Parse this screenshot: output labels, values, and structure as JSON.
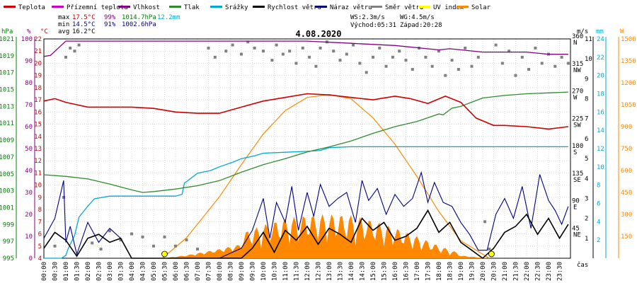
{
  "chart_data": {
    "type": "line",
    "title": "4.08.2020",
    "xlabel": "čas",
    "x_ticks": [
      "00:00",
      "00:30",
      "01:00",
      "01:30",
      "02:00",
      "02:30",
      "03:00",
      "03:30",
      "04:00",
      "04:30",
      "05:00",
      "05:30",
      "06:00",
      "06:30",
      "07:00",
      "07:30",
      "08:00",
      "08:30",
      "09:00",
      "09:30",
      "10:00",
      "10:30",
      "11:00",
      "11:30",
      "12:00",
      "12:30",
      "13:00",
      "13:30",
      "14:00",
      "14:30",
      "15:00",
      "15:30",
      "16:00",
      "16:30",
      "17:00",
      "17:30",
      "18:00",
      "18:30",
      "19:00",
      "19:30",
      "20:00",
      "20:30",
      "21:00",
      "21:30",
      "22:00",
      "22:30",
      "23:00",
      "23:30"
    ],
    "axes": {
      "hPa": {
        "unit": "hPa",
        "color": "#008000",
        "range": [
          995,
          1021
        ],
        "ticks": [
          995,
          997,
          999,
          1001,
          1003,
          1005,
          1007,
          1009,
          1011,
          1013,
          1015,
          1017,
          1019,
          1021
        ]
      },
      "pct": {
        "unit": "%",
        "color": "#800080",
        "range": [
          0,
          100
        ],
        "ticks": [
          0,
          10,
          20,
          30,
          40,
          50,
          60,
          70,
          80,
          90,
          100
        ]
      },
      "degC": {
        "unit": "°C",
        "color": "#cc0000",
        "range": [
          4,
          22
        ],
        "ticks": [
          4,
          5,
          6,
          7,
          8,
          9,
          10,
          11,
          12,
          13,
          14,
          15,
          16,
          17,
          18,
          19,
          20,
          21,
          22
        ]
      },
      "deg": {
        "unit": "",
        "color": "#000000",
        "range": [
          0,
          360
        ],
        "ticks": [
          {
            "v": 360,
            "l": "360",
            "d": "N"
          },
          {
            "v": 315,
            "l": "315",
            "d": "NW"
          },
          {
            "v": 270,
            "l": "270",
            "d": "W"
          },
          {
            "v": 225,
            "l": "225",
            "d": "SW"
          },
          {
            "v": 180,
            "l": "180",
            "d": "S"
          },
          {
            "v": 135,
            "l": "135",
            "d": "SE"
          },
          {
            "v": 90,
            "l": "90",
            "d": "E"
          },
          {
            "v": 45,
            "l": "45",
            "d": "NE"
          }
        ]
      },
      "ms": {
        "unit": "m/s",
        "color": "#000000",
        "range": [
          0,
          11
        ],
        "ticks": [
          1,
          2,
          3,
          4,
          5,
          6,
          7,
          8,
          9,
          10,
          11
        ]
      },
      "mm": {
        "unit": "mm",
        "color": "#00aacc",
        "range": [
          0,
          24
        ],
        "ticks": [
          2,
          4,
          6,
          8,
          10,
          12,
          14,
          16,
          18,
          20,
          22,
          24
        ]
      },
      "W": {
        "unit": "W",
        "color": "#ff8800",
        "range": [
          0,
          1500
        ],
        "ticks": [
          150,
          300,
          450,
          600,
          750,
          900,
          1050,
          1200,
          1350,
          1500
        ]
      }
    },
    "legend": [
      {
        "name": "Teplota",
        "color": "#cc0000"
      },
      {
        "name": "Přízemní teplota",
        "color": "#cc00cc"
      },
      {
        "name": "Vlhkost",
        "color": "#800080"
      },
      {
        "name": "Tlak",
        "color": "#2e8b2e"
      },
      {
        "name": "Srážky",
        "color": "#00aacc"
      },
      {
        "name": "Rychlost větru",
        "color": "#000000"
      },
      {
        "name": "Náraz větru",
        "color": "#000080"
      },
      {
        "name": "Směr větru",
        "color": "#808080"
      },
      {
        "name": "UV index",
        "color": "#ffff00"
      },
      {
        "name": "Solar",
        "color": "#ff8800"
      }
    ],
    "stats": {
      "max_label": "max",
      "min_label": "min",
      "avg_label": "avg",
      "max_temp": "17.5°C",
      "max_hum": "99%",
      "max_press": "1014.7hPa",
      "max_rain": "12.2mm",
      "min_temp": "14.5°C",
      "min_hum": "91%",
      "min_press": "1002.6hPa",
      "avg_temp": "16.2°C"
    },
    "wind_info": {
      "ws": "WS:2.3m/s",
      "wg": "WG:4.5m/s",
      "sunrise": "Východ:05:31",
      "sunset": "Západ:20:28"
    },
    "series": [
      {
        "name": "Teplota",
        "axis": "degC",
        "hours": [
          0,
          0.5,
          1,
          1.5,
          2,
          3,
          4,
          5,
          6,
          7,
          8,
          9,
          10,
          11,
          12,
          13,
          14,
          15,
          16,
          16.7,
          17.5,
          18.3,
          19,
          19.7,
          20.5,
          21,
          22,
          23,
          23.9
        ],
        "values": [
          16.9,
          17.1,
          16.8,
          16.6,
          16.4,
          16.4,
          16.4,
          16.3,
          16.0,
          15.9,
          15.9,
          16.4,
          16.9,
          17.2,
          17.5,
          17.4,
          17.2,
          17.0,
          17.3,
          17.1,
          16.7,
          17.3,
          16.8,
          15.5,
          14.9,
          14.9,
          14.8,
          14.6,
          14.8
        ]
      },
      {
        "name": "Vlhkost",
        "axis": "pct",
        "hours": [
          0,
          0.3,
          1,
          2,
          4,
          6,
          8,
          10,
          12,
          14,
          16,
          18,
          18.5,
          20,
          22,
          23,
          23.9
        ],
        "values": [
          92,
          92.5,
          99,
          99,
          99,
          99,
          99,
          99,
          99,
          98,
          97,
          95,
          95.5,
          94,
          94,
          93,
          93
        ]
      },
      {
        "name": "Tlak",
        "axis": "hPa",
        "hours": [
          0,
          1,
          2,
          3,
          4,
          4.5,
          5,
          6,
          6.5,
          7,
          8,
          9,
          10,
          11,
          12,
          13,
          14,
          15,
          16,
          17,
          18,
          18.2,
          18.6,
          19,
          20,
          21,
          22,
          23,
          23.9
        ],
        "values": [
          1004.9,
          1004.7,
          1004.4,
          1003.8,
          1003.1,
          1002.8,
          1002.9,
          1003.2,
          1003.4,
          1003.6,
          1004.2,
          1005.2,
          1006.1,
          1006.8,
          1007.6,
          1008.2,
          1008.9,
          1009.8,
          1010.6,
          1011.2,
          1012.1,
          1012.0,
          1012.8,
          1013.0,
          1014.0,
          1014.3,
          1014.5,
          1014.6,
          1014.7
        ]
      },
      {
        "name": "Srážky",
        "axis": "mm",
        "hours": [
          0,
          0.8,
          1,
          1.1,
          1.4,
          1.6,
          2,
          2.3,
          3,
          4,
          5,
          6,
          6.3,
          6.4,
          7,
          7.6,
          8,
          8.6,
          9,
          9.6,
          10,
          11,
          12,
          12.6,
          13,
          14,
          15,
          16,
          17,
          18,
          20,
          22,
          23.9
        ],
        "values": [
          0,
          0,
          0.3,
          1.0,
          2.5,
          4.5,
          5.7,
          6.5,
          6.8,
          6.8,
          6.8,
          6.8,
          7.0,
          8.2,
          9.3,
          9.6,
          10.0,
          10.5,
          10.9,
          11.2,
          11.5,
          11.6,
          11.7,
          11.8,
          12.1,
          12.2,
          12.2,
          12.2,
          12.2,
          12.2,
          12.2,
          12.2,
          12.2
        ]
      },
      {
        "name": "Solar",
        "axis": "W",
        "hours": [
          5.4,
          6.5,
          8,
          9,
          10,
          11,
          12,
          13,
          14,
          15,
          16,
          17,
          18,
          19,
          20.3
        ],
        "values": [
          0,
          140,
          420,
          640,
          850,
          1010,
          1100,
          1120,
          1090,
          960,
          780,
          560,
          320,
          120,
          0
        ]
      },
      {
        "name": "Rychlost větru",
        "axis": "ms",
        "hours": [
          0,
          0.5,
          1,
          1.5,
          2,
          2.5,
          3,
          3.5,
          4,
          5,
          6,
          7,
          8,
          9,
          9.5,
          10,
          10.5,
          11,
          11.5,
          12,
          12.5,
          13,
          13.5,
          14,
          14.5,
          15,
          15.5,
          16,
          16.5,
          17,
          17.5,
          18,
          18.5,
          19,
          19.5,
          20,
          20.5,
          21,
          21.5,
          22,
          22.5,
          23,
          23.5,
          23.9
        ],
        "values": [
          0.5,
          1.3,
          0.9,
          0.1,
          1.0,
          1.2,
          0.8,
          1.0,
          0,
          0,
          0,
          0,
          0,
          0,
          0.5,
          1.3,
          0.3,
          1.4,
          0.9,
          1.6,
          0.7,
          1.5,
          1.2,
          0.8,
          2.0,
          1.4,
          1.8,
          0.9,
          1.1,
          1.5,
          2.4,
          1.3,
          1.8,
          0.8,
          0.4,
          0,
          0.5,
          1.3,
          1.6,
          2.2,
          1.2,
          2.0,
          1.0,
          1.7
        ]
      },
      {
        "name": "Náraz větru",
        "axis": "ms",
        "hours": [
          0,
          0.5,
          0.9,
          1,
          1.2,
          1.5,
          2,
          2.5,
          3,
          3.5,
          4,
          5,
          6,
          7,
          8,
          9,
          9.5,
          10,
          10.3,
          10.6,
          11,
          11.3,
          11.6,
          12,
          12.3,
          12.6,
          13,
          13.4,
          13.8,
          14.2,
          14.5,
          14.8,
          15.2,
          15.6,
          16,
          16.4,
          16.8,
          17.2,
          17.5,
          17.8,
          18.2,
          18.6,
          19,
          19.4,
          19.8,
          20.2,
          20.6,
          21,
          21.4,
          21.8,
          22.2,
          22.6,
          23,
          23.3,
          23.6,
          23.9
        ],
        "values": [
          1.0,
          2.0,
          3.9,
          0.8,
          1.6,
          0.2,
          1.8,
          0.8,
          1.5,
          1.0,
          0,
          0,
          0,
          0,
          0,
          0.5,
          1.4,
          3.0,
          1.0,
          2.8,
          1.8,
          3.6,
          1.4,
          3.3,
          2.1,
          3.7,
          2.6,
          3.0,
          3.3,
          1.8,
          3.9,
          2.9,
          3.5,
          2.2,
          3.2,
          2.6,
          3.0,
          4.3,
          2.8,
          3.8,
          2.8,
          2.6,
          1.8,
          1.2,
          0.4,
          0.4,
          2.2,
          3.0,
          2.0,
          3.6,
          1.5,
          4.2,
          2.9,
          2.4,
          1.7,
          2.6
        ]
      }
    ],
    "wind_dir_points": [
      {
        "h": 0.5,
        "d": 20
      },
      {
        "h": 0.9,
        "d": 100
      },
      {
        "h": 1.0,
        "d": 330
      },
      {
        "h": 1.2,
        "d": 345
      },
      {
        "h": 1.4,
        "d": 340
      },
      {
        "h": 1.6,
        "d": 350
      },
      {
        "h": 2.2,
        "d": 25
      },
      {
        "h": 2.6,
        "d": 15
      },
      {
        "h": 3.0,
        "d": 45
      },
      {
        "h": 3.5,
        "d": 30
      },
      {
        "h": 4.0,
        "d": 40
      },
      {
        "h": 4.5,
        "d": 35
      },
      {
        "h": 5.0,
        "d": 20
      },
      {
        "h": 5.5,
        "d": 35
      },
      {
        "h": 6.0,
        "d": 20
      },
      {
        "h": 6.5,
        "d": 30
      },
      {
        "h": 7.0,
        "d": 15
      },
      {
        "h": 7.5,
        "d": 345
      },
      {
        "h": 7.8,
        "d": 330
      },
      {
        "h": 8.3,
        "d": 340
      },
      {
        "h": 8.6,
        "d": 350
      },
      {
        "h": 9.0,
        "d": 335
      },
      {
        "h": 9.3,
        "d": 355
      },
      {
        "h": 9.6,
        "d": 345
      },
      {
        "h": 10.0,
        "d": 340
      },
      {
        "h": 10.4,
        "d": 325
      },
      {
        "h": 10.6,
        "d": 350
      },
      {
        "h": 10.9,
        "d": 335
      },
      {
        "h": 11.2,
        "d": 340
      },
      {
        "h": 11.5,
        "d": 320
      },
      {
        "h": 11.8,
        "d": 345
      },
      {
        "h": 12.1,
        "d": 330
      },
      {
        "h": 12.4,
        "d": 315
      },
      {
        "h": 12.6,
        "d": 345
      },
      {
        "h": 12.9,
        "d": 355
      },
      {
        "h": 13.2,
        "d": 340
      },
      {
        "h": 13.5,
        "d": 325
      },
      {
        "h": 13.8,
        "d": 335
      },
      {
        "h": 14.1,
        "d": 350
      },
      {
        "h": 14.4,
        "d": 320
      },
      {
        "h": 14.7,
        "d": 305
      },
      {
        "h": 15.0,
        "d": 330
      },
      {
        "h": 15.3,
        "d": 345
      },
      {
        "h": 15.6,
        "d": 315
      },
      {
        "h": 15.9,
        "d": 330
      },
      {
        "h": 16.2,
        "d": 340
      },
      {
        "h": 16.5,
        "d": 325
      },
      {
        "h": 16.8,
        "d": 310
      },
      {
        "h": 17.1,
        "d": 345
      },
      {
        "h": 17.4,
        "d": 330
      },
      {
        "h": 17.7,
        "d": 315
      },
      {
        "h": 18.0,
        "d": 340
      },
      {
        "h": 18.3,
        "d": 300
      },
      {
        "h": 18.6,
        "d": 325
      },
      {
        "h": 18.9,
        "d": 310
      },
      {
        "h": 19.2,
        "d": 345
      },
      {
        "h": 19.5,
        "d": 315
      },
      {
        "h": 19.8,
        "d": 330
      },
      {
        "h": 20.1,
        "d": 60
      },
      {
        "h": 20.3,
        "d": 15
      },
      {
        "h": 20.6,
        "d": 350
      },
      {
        "h": 20.9,
        "d": 320
      },
      {
        "h": 21.2,
        "d": 340
      },
      {
        "h": 21.5,
        "d": 300
      },
      {
        "h": 21.8,
        "d": 330
      },
      {
        "h": 22.1,
        "d": 310
      },
      {
        "h": 22.4,
        "d": 345
      },
      {
        "h": 22.7,
        "d": 320
      },
      {
        "h": 23.0,
        "d": 335
      },
      {
        "h": 23.3,
        "d": 315
      },
      {
        "h": 23.6,
        "d": 330
      },
      {
        "h": 23.9,
        "d": 320
      }
    ],
    "sun_markers": [
      5.5,
      20.4
    ]
  }
}
